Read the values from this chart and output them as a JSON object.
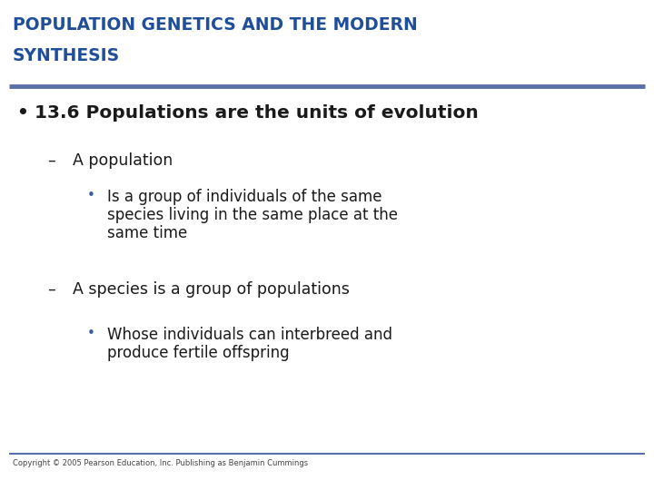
{
  "title_line1": "POPULATION GENETICS AND THE MODERN",
  "title_line2": "SYNTHESIS",
  "title_color": "#1F4E9A",
  "separator_color": "#5A6EAA",
  "background_color": "#FFFFFF",
  "bullet1": "13.6 Populations are the units of evolution",
  "sub1": "A population",
  "sub1_bullet_line1": "Is a group of individuals of the same",
  "sub1_bullet_line2": "species living in the same place at the",
  "sub1_bullet_line3": "same time",
  "sub2": "A species is a group of populations",
  "sub2_bullet_line1": "Whose individuals can interbreed and",
  "sub2_bullet_line2": "produce fertile offspring",
  "footer": "Copyright © 2005 Pearson Education, Inc. Publishing as Benjamin Cummings",
  "footer_color": "#444444",
  "bullet_color": "#3A5AA0",
  "text_color": "#1A1A1A",
  "title_fontsize": 13.5,
  "bullet1_fontsize": 14.5,
  "sub_fontsize": 12.5,
  "nested_fontsize": 12.0,
  "footer_fontsize": 6.0
}
